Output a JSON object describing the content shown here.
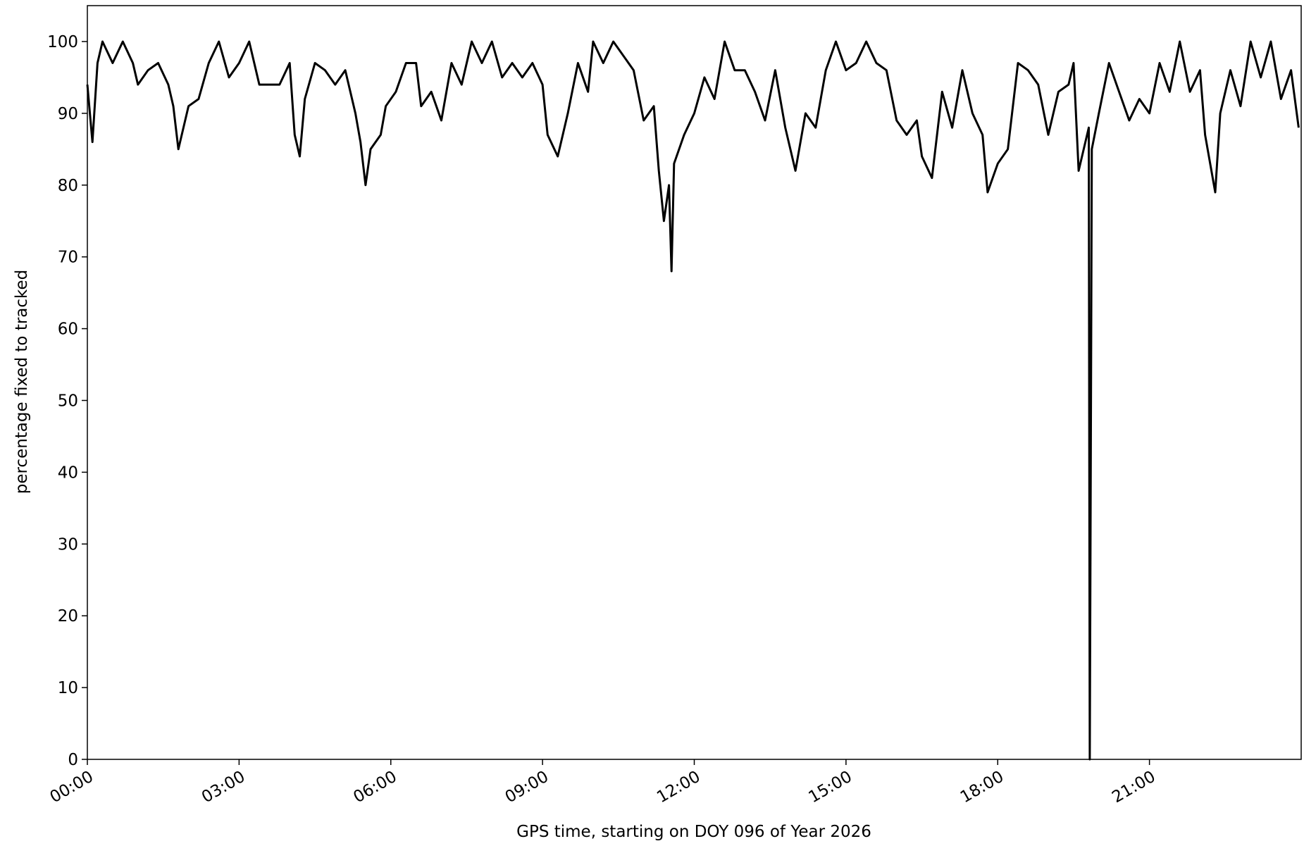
{
  "chart_data": {
    "type": "line",
    "xlabel": "GPS time, starting on DOY 096 of Year 2026",
    "ylabel": "percentage fixed to tracked",
    "x": [
      0.0,
      0.1,
      0.2,
      0.3,
      0.5,
      0.7,
      0.9,
      1.0,
      1.2,
      1.4,
      1.6,
      1.7,
      1.8,
      2.0,
      2.2,
      2.4,
      2.6,
      2.8,
      3.0,
      3.2,
      3.4,
      3.6,
      3.8,
      4.0,
      4.1,
      4.2,
      4.3,
      4.5,
      4.7,
      4.9,
      5.1,
      5.3,
      5.4,
      5.5,
      5.6,
      5.8,
      5.9,
      6.1,
      6.3,
      6.5,
      6.6,
      6.8,
      7.0,
      7.2,
      7.4,
      7.6,
      7.8,
      8.0,
      8.2,
      8.4,
      8.6,
      8.8,
      9.0,
      9.1,
      9.3,
      9.5,
      9.7,
      9.9,
      10.0,
      10.2,
      10.4,
      10.8,
      11.0,
      11.2,
      11.3,
      11.4,
      11.5,
      11.55,
      11.6,
      11.8,
      12.0,
      12.2,
      12.4,
      12.6,
      12.8,
      13.0,
      13.2,
      13.4,
      13.6,
      13.8,
      14.0,
      14.2,
      14.4,
      14.6,
      14.8,
      15.0,
      15.2,
      15.4,
      15.6,
      15.8,
      16.0,
      16.2,
      16.4,
      16.5,
      16.7,
      16.9,
      17.1,
      17.3,
      17.5,
      17.7,
      17.8,
      18.0,
      18.2,
      18.4,
      18.6,
      18.8,
      19.0,
      19.2,
      19.4,
      19.5,
      19.6,
      19.8,
      19.82,
      19.86,
      20.0,
      20.2,
      20.4,
      20.6,
      20.8,
      21.0,
      21.2,
      21.4,
      21.6,
      21.8,
      22.0,
      22.1,
      22.3,
      22.4,
      22.6,
      22.8,
      23.0,
      23.2,
      23.4,
      23.6,
      23.8,
      23.95
    ],
    "series": [
      {
        "name": "fixed",
        "color": "#000000",
        "values": [
          94,
          86,
          97,
          100,
          97,
          100,
          97,
          94,
          96,
          97,
          94,
          91,
          85,
          91,
          92,
          97,
          100,
          95,
          97,
          100,
          94,
          94,
          94,
          97,
          87,
          84,
          92,
          97,
          96,
          94,
          96,
          90,
          86,
          80,
          85,
          87,
          91,
          93,
          97,
          97,
          91,
          93,
          89,
          97,
          94,
          100,
          97,
          100,
          95,
          97,
          95,
          97,
          94,
          87,
          84,
          90,
          97,
          93,
          100,
          97,
          100,
          96,
          89,
          91,
          82,
          75,
          80,
          68,
          83,
          87,
          90,
          95,
          92,
          100,
          96,
          96,
          93,
          89,
          96,
          88,
          82,
          90,
          88,
          96,
          100,
          96,
          97,
          100,
          97,
          96,
          89,
          87,
          89,
          84,
          81,
          93,
          88,
          96,
          90,
          87,
          79,
          83,
          85,
          97,
          96,
          94,
          87,
          93,
          94,
          97,
          82,
          88,
          0,
          85,
          90,
          97,
          93,
          89,
          92,
          90,
          97,
          93,
          100,
          93,
          96,
          87,
          79,
          90,
          96,
          91,
          100,
          95,
          100,
          92,
          96,
          88
        ]
      }
    ],
    "xlim": [
      0,
      24
    ],
    "xticks": [
      {
        "value": 0,
        "label": "00:00"
      },
      {
        "value": 3,
        "label": "03:00"
      },
      {
        "value": 6,
        "label": "06:00"
      },
      {
        "value": 9,
        "label": "09:00"
      },
      {
        "value": 12,
        "label": "12:00"
      },
      {
        "value": 15,
        "label": "15:00"
      },
      {
        "value": 18,
        "label": "18:00"
      },
      {
        "value": 21,
        "label": "21:00"
      }
    ],
    "ylim": [
      0,
      105
    ],
    "yticks": [
      0,
      10,
      20,
      30,
      40,
      50,
      60,
      70,
      80,
      90,
      100
    ],
    "grid": false
  }
}
